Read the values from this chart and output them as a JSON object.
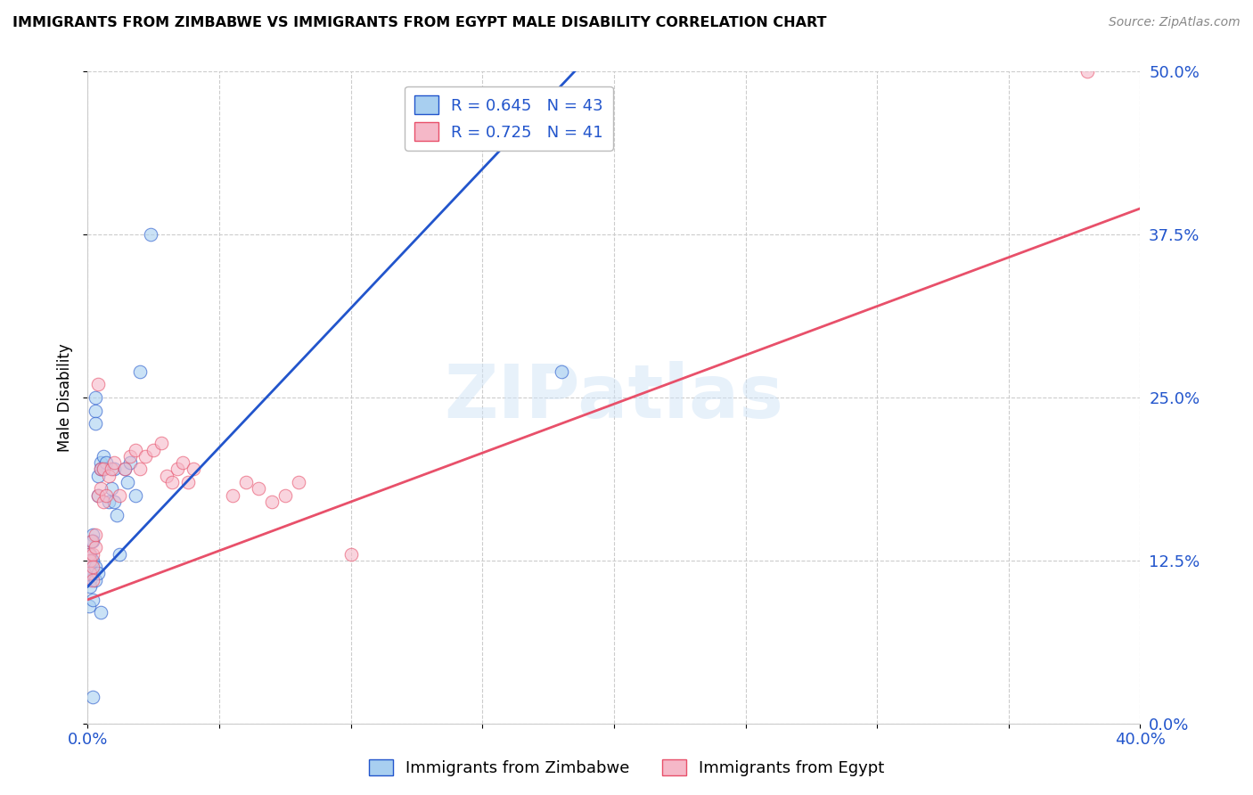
{
  "title": "IMMIGRANTS FROM ZIMBABWE VS IMMIGRANTS FROM EGYPT MALE DISABILITY CORRELATION CHART",
  "source": "Source: ZipAtlas.com",
  "ylabel": "Male Disability",
  "xlim": [
    0.0,
    0.4
  ],
  "ylim": [
    0.0,
    0.5
  ],
  "xticks": [
    0.0,
    0.05,
    0.1,
    0.15,
    0.2,
    0.25,
    0.3,
    0.35,
    0.4
  ],
  "yticks": [
    0.0,
    0.125,
    0.25,
    0.375,
    0.5
  ],
  "ytick_labels": [
    "0.0%",
    "12.5%",
    "25.0%",
    "37.5%",
    "50.0%"
  ],
  "zimbabwe_color": "#a8cff0",
  "egypt_color": "#f5b8c8",
  "zimbabwe_line_color": "#2255cc",
  "egypt_line_color": "#e8506a",
  "zimbabwe_R": 0.645,
  "zimbabwe_N": 43,
  "egypt_R": 0.725,
  "egypt_N": 41,
  "legend_label_zimbabwe": "Immigrants from Zimbabwe",
  "legend_label_egypt": "Immigrants from Egypt",
  "watermark": "ZIPatlas",
  "zimbabwe_line_x0": 0.0,
  "zimbabwe_line_y0": 0.105,
  "zimbabwe_line_x1": 0.185,
  "zimbabwe_line_y1": 0.5,
  "egypt_line_x0": 0.0,
  "egypt_line_y0": 0.095,
  "egypt_line_x1": 0.4,
  "egypt_line_y1": 0.395,
  "zimbabwe_x": [
    0.0005,
    0.0005,
    0.001,
    0.001,
    0.001,
    0.001,
    0.0015,
    0.0015,
    0.002,
    0.002,
    0.002,
    0.002,
    0.003,
    0.003,
    0.003,
    0.004,
    0.004,
    0.005,
    0.005,
    0.006,
    0.006,
    0.007,
    0.008,
    0.009,
    0.01,
    0.01,
    0.011,
    0.012,
    0.014,
    0.015,
    0.016,
    0.018,
    0.02,
    0.024,
    0.0005,
    0.001,
    0.002,
    0.003,
    0.003,
    0.004,
    0.005,
    0.18,
    0.002
  ],
  "zimbabwe_y": [
    0.13,
    0.12,
    0.125,
    0.13,
    0.115,
    0.11,
    0.14,
    0.125,
    0.145,
    0.14,
    0.125,
    0.115,
    0.24,
    0.25,
    0.23,
    0.175,
    0.19,
    0.2,
    0.195,
    0.195,
    0.205,
    0.2,
    0.17,
    0.18,
    0.195,
    0.17,
    0.16,
    0.13,
    0.195,
    0.185,
    0.2,
    0.175,
    0.27,
    0.375,
    0.09,
    0.105,
    0.095,
    0.12,
    0.11,
    0.115,
    0.085,
    0.27,
    0.02
  ],
  "egypt_x": [
    0.0005,
    0.001,
    0.001,
    0.0015,
    0.002,
    0.002,
    0.002,
    0.003,
    0.003,
    0.004,
    0.004,
    0.005,
    0.005,
    0.006,
    0.006,
    0.007,
    0.008,
    0.009,
    0.01,
    0.012,
    0.014,
    0.016,
    0.018,
    0.02,
    0.022,
    0.025,
    0.028,
    0.03,
    0.032,
    0.034,
    0.036,
    0.038,
    0.04,
    0.055,
    0.06,
    0.065,
    0.07,
    0.075,
    0.08,
    0.1,
    0.38
  ],
  "egypt_y": [
    0.13,
    0.125,
    0.115,
    0.14,
    0.13,
    0.12,
    0.11,
    0.135,
    0.145,
    0.175,
    0.26,
    0.18,
    0.195,
    0.195,
    0.17,
    0.175,
    0.19,
    0.195,
    0.2,
    0.175,
    0.195,
    0.205,
    0.21,
    0.195,
    0.205,
    0.21,
    0.215,
    0.19,
    0.185,
    0.195,
    0.2,
    0.185,
    0.195,
    0.175,
    0.185,
    0.18,
    0.17,
    0.175,
    0.185,
    0.13,
    0.5
  ]
}
